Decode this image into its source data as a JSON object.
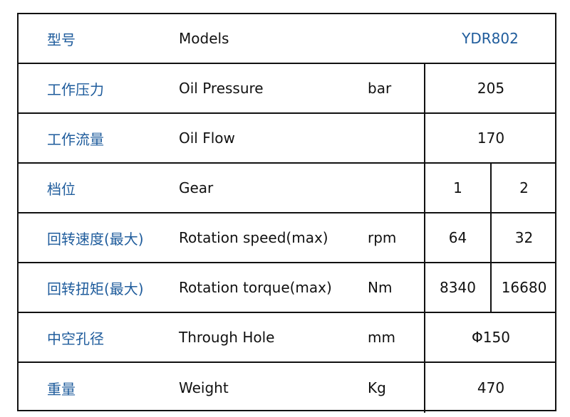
{
  "rows": [
    {
      "cn": "型号",
      "en": "Models",
      "unit": "",
      "value": "YDR802"
    },
    {
      "cn": "工作压力",
      "en": "Oil Pressure",
      "unit": "bar",
      "value": "205"
    },
    {
      "cn": "工作流量",
      "en": "Oil Flow",
      "unit": "",
      "value": "170"
    },
    {
      "cn": "档位",
      "en": "Gear",
      "unit": "",
      "values": [
        "1",
        "2"
      ]
    },
    {
      "cn": "回转速度(最大)",
      "en": "Rotation speed(max)",
      "unit": "rpm",
      "values": [
        "64",
        "32"
      ]
    },
    {
      "cn": "回转扭矩(最大)",
      "en": "Rotation torque(max)",
      "unit": "Nm",
      "values": [
        "8340",
        "16680"
      ]
    },
    {
      "cn": "中空孔径",
      "en": "Through Hole",
      "unit": "mm",
      "value": "Φ150"
    },
    {
      "cn": "重量",
      "en": "Weight",
      "unit": "Kg",
      "value": "470"
    }
  ],
  "colors": {
    "chinese_label": "#1f5c9c",
    "model_value": "#1f5c9c",
    "border": "#111111"
  }
}
